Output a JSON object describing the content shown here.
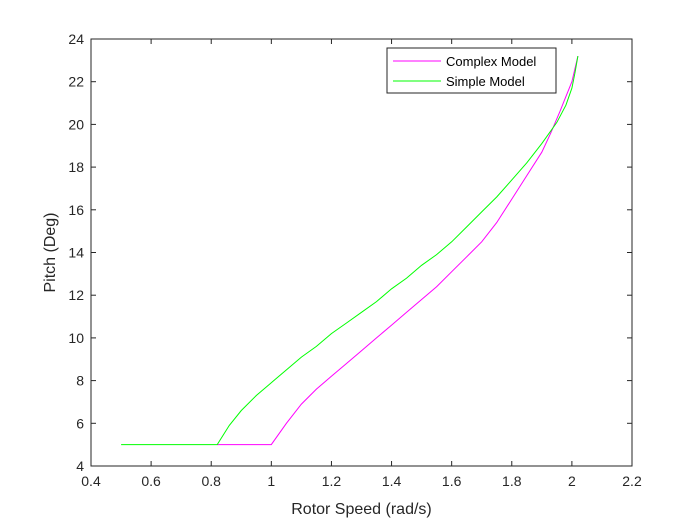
{
  "chart_data": {
    "type": "line",
    "title": "",
    "xlabel": "Rotor Speed (rad/s)",
    "ylabel": "Pitch (Deg)",
    "xlim": [
      0.4,
      2.2
    ],
    "ylim": [
      4,
      24
    ],
    "xticks": [
      0.4,
      0.6,
      0.8,
      1,
      1.2,
      1.4,
      1.6,
      1.8,
      2,
      2.2
    ],
    "xtick_labels": [
      "0.4",
      "0.6",
      "0.8",
      "1",
      "1.2",
      "1.4",
      "1.6",
      "1.8",
      "2",
      "2.2"
    ],
    "yticks": [
      4,
      6,
      8,
      10,
      12,
      14,
      16,
      18,
      20,
      22,
      24
    ],
    "ytick_labels": [
      "4",
      "6",
      "8",
      "10",
      "12",
      "14",
      "16",
      "18",
      "20",
      "22",
      "24"
    ],
    "grid": false,
    "legend_position": "top-right",
    "series": [
      {
        "name": "Complex Model",
        "color": "#ff00ff",
        "x": [
          0.82,
          1.0,
          1.05,
          1.1,
          1.15,
          1.2,
          1.25,
          1.3,
          1.35,
          1.4,
          1.45,
          1.5,
          1.55,
          1.6,
          1.65,
          1.7,
          1.75,
          1.8,
          1.85,
          1.9,
          1.93,
          1.96,
          1.98,
          2.0,
          2.01,
          2.02
        ],
        "y": [
          5.0,
          5.0,
          6.0,
          6.9,
          7.6,
          8.2,
          8.8,
          9.4,
          10.0,
          10.6,
          11.2,
          11.8,
          12.4,
          13.1,
          13.8,
          14.5,
          15.4,
          16.5,
          17.6,
          18.7,
          19.6,
          20.6,
          21.3,
          22.0,
          22.6,
          23.2
        ]
      },
      {
        "name": "Simple Model",
        "color": "#00ff00",
        "x": [
          0.5,
          0.82,
          0.86,
          0.9,
          0.95,
          1.0,
          1.05,
          1.1,
          1.15,
          1.2,
          1.25,
          1.3,
          1.35,
          1.4,
          1.45,
          1.5,
          1.55,
          1.6,
          1.65,
          1.7,
          1.75,
          1.8,
          1.85,
          1.9,
          1.95,
          1.98,
          2.0,
          2.01,
          2.02
        ],
        "y": [
          5.0,
          5.0,
          5.9,
          6.6,
          7.3,
          7.9,
          8.5,
          9.1,
          9.6,
          10.2,
          10.7,
          11.2,
          11.7,
          12.3,
          12.8,
          13.4,
          13.9,
          14.5,
          15.2,
          15.9,
          16.6,
          17.4,
          18.2,
          19.1,
          20.1,
          20.9,
          21.7,
          22.4,
          23.2
        ]
      }
    ]
  }
}
